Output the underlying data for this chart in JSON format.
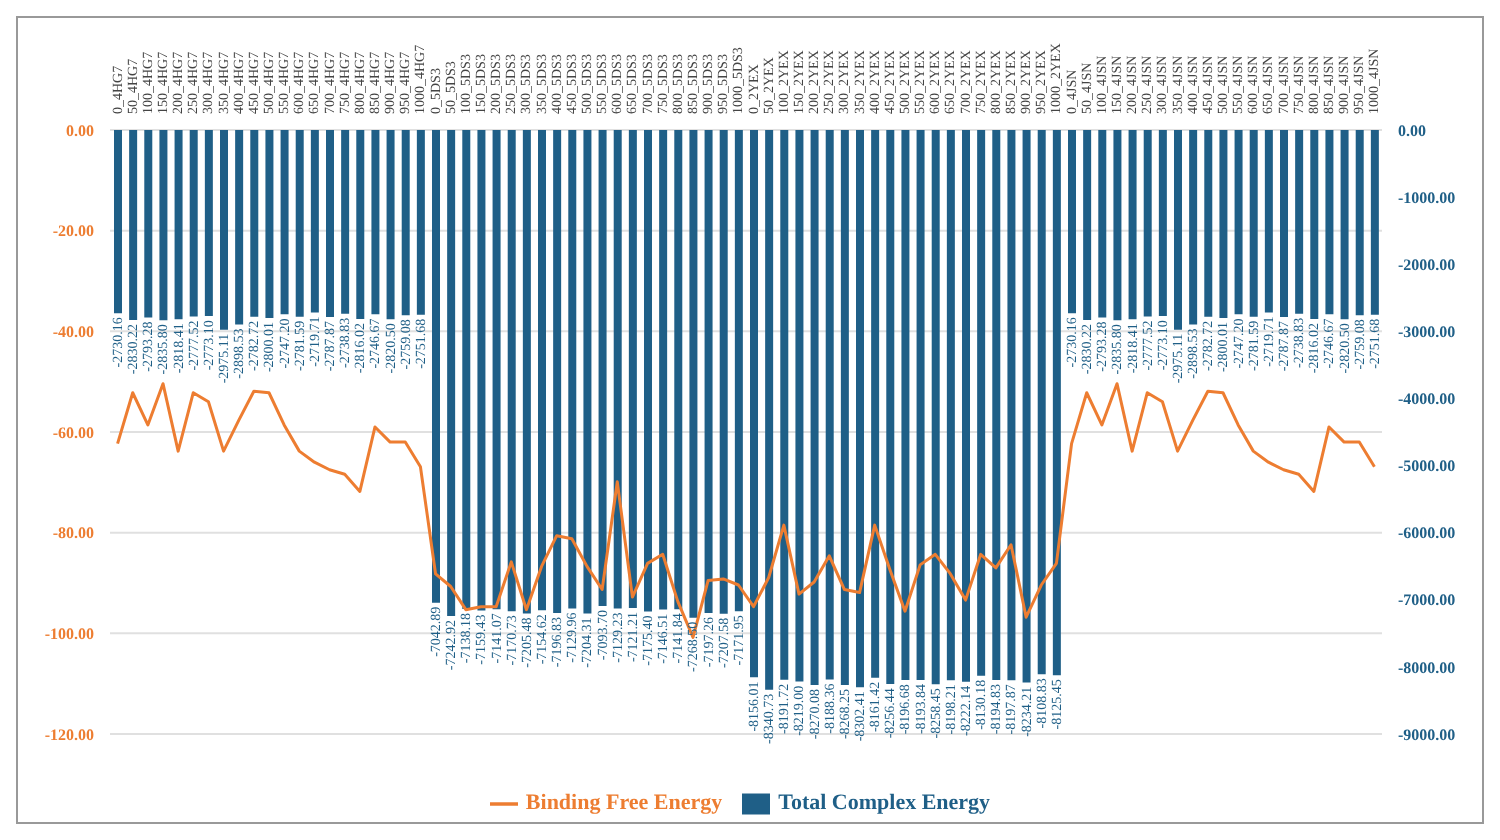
{
  "chart_data": {
    "type": "bar",
    "categories": [
      "0_4HG7",
      "50_4HG7",
      "100_4HG7",
      "150_4HG7",
      "200_4HG7",
      "250_4HG7",
      "300_4HG7",
      "350_4HG7",
      "400_4HG7",
      "450_4HG7",
      "500_4HG7",
      "550_4HG7",
      "600_4HG7",
      "650_4HG7",
      "700_4HG7",
      "750_4HG7",
      "800_4HG7",
      "850_4HG7",
      "900_4HG7",
      "950_4HG7",
      "1000_4HG7",
      "0_5DS3",
      "50_5DS3",
      "100_5DS3",
      "150_5DS3",
      "200_5DS3",
      "250_5DS3",
      "300_5DS3",
      "350_5DS3",
      "400_5DS3",
      "450_5DS3",
      "500_5DS3",
      "550_5DS3",
      "600_5DS3",
      "650_5DS3",
      "700_5DS3",
      "750_5DS3",
      "800_5DS3",
      "850_5DS3",
      "900_5DS3",
      "950_5DS3",
      "1000_5DS3",
      "0_2YEX",
      "50_2YEX",
      "100_2YEX",
      "150_2YEX",
      "200_2YEX",
      "250_2YEX",
      "300_2YEX",
      "350_2YEX",
      "400_2YEX",
      "450_2YEX",
      "500_2YEX",
      "550_2YEX",
      "600_2YEX",
      "650_2YEX",
      "700_2YEX",
      "750_2YEX",
      "800_2YEX",
      "850_2YEX",
      "900_2YEX",
      "950_2YEX",
      "1000_2YEX",
      "0_4JSN",
      "50_4JSN",
      "100_4JSN",
      "150_4JSN",
      "200_4JSN",
      "250_4JSN",
      "300_4JSN",
      "350_4JSN",
      "400_4JSN",
      "450_4JSN",
      "500_4JSN",
      "550_4JSN",
      "600_4JSN",
      "650_4JSN",
      "700_4JSN",
      "750_4JSN",
      "800_4JSN",
      "850_4JSN",
      "900_4JSN",
      "950_4JSN",
      "1000_4JSN"
    ],
    "series": [
      {
        "name": "Total Complex Energy",
        "axis": "y2",
        "color": "#1f5f87",
        "values": [
          -2730.16,
          -2830.22,
          -2793.28,
          -2835.8,
          -2818.41,
          -2777.52,
          -2773.1,
          -2975.11,
          -2898.53,
          -2782.72,
          -2800.01,
          -2747.2,
          -2781.59,
          -2719.71,
          -2787.87,
          -2738.83,
          -2816.02,
          -2746.67,
          -2820.5,
          -2759.08,
          -2751.68,
          -7042.89,
          -7242.92,
          -7138.18,
          -7159.43,
          -7141.07,
          -7170.73,
          -7205.48,
          -7154.62,
          -7196.83,
          -7129.96,
          -7204.31,
          -7093.7,
          -7129.23,
          -7121.21,
          -7175.4,
          -7146.51,
          -7141.84,
          -7268.5,
          -7197.26,
          -7207.58,
          -7171.95,
          -8156.01,
          -8340.73,
          -8191.72,
          -8219.0,
          -8270.08,
          -8188.36,
          -8268.25,
          -8302.41,
          -8161.42,
          -8256.44,
          -8196.68,
          -8193.84,
          -8258.45,
          -8198.21,
          -8222.14,
          -8130.18,
          -8194.83,
          -8197.87,
          -8234.21,
          -8108.83,
          -8125.45,
          -2730.16,
          -2830.22,
          -2793.28,
          -2835.8,
          -2818.41,
          -2777.52,
          -2773.1,
          -2975.11,
          -2898.53,
          -2782.72,
          -2800.01,
          -2747.2,
          -2781.59,
          -2719.71,
          -2787.87,
          -2738.83,
          -2816.02,
          -2746.67,
          -2820.5,
          -2759.08,
          -2751.68
        ],
        "value_labels": [
          "-2730.16",
          "-2830.22",
          "-2793.28",
          "-2835.80",
          "-2818.41",
          "-2777.52",
          "-2773.10",
          "-2975.11",
          "-2898.53",
          "-2782.72",
          "-2800.01",
          "-2747.20",
          "-2781.59",
          "-2719.71",
          "-2787.87",
          "-2738.83",
          "-2816.02",
          "-2746.67",
          "-2820.50",
          "-2759.08",
          "-2751.68",
          "-7042.89",
          "-7242.92",
          "-7138.18",
          "-7159.43",
          "-7141.07",
          "-7170.73",
          "-7205.48",
          "-7154.62",
          "-7196.83",
          "-7129.96",
          "-7204.31",
          "-7093.70",
          "-7129.23",
          "-7121.21",
          "-7175.40",
          "-7146.51",
          "-7141.84",
          "-7268.50",
          "-7197.26",
          "-7207.58",
          "-7171.95",
          "-8156.01",
          "-8340.73",
          "-8191.72",
          "-8219.00",
          "-8270.08",
          "-8188.36",
          "-8268.25",
          "-8302.41",
          "-8161.42",
          "-8256.44",
          "-8196.68",
          "-8193.84",
          "-8258.45",
          "-8198.21",
          "-8222.14",
          "-8130.18",
          "-8194.83",
          "-8197.87",
          "-8234.21",
          "-8108.83",
          "-8125.45",
          "-2730.16",
          "-2830.22",
          "-2793.28",
          "-2835.80",
          "-2818.41",
          "-2777.52",
          "-2773.10",
          "-2975.11",
          "-2898.53",
          "-2782.72",
          "-2800.01",
          "-2747.20",
          "-2781.59",
          "-2719.71",
          "-2787.87",
          "-2738.83",
          "-2816.02",
          "-2746.67",
          "-2820.50",
          "-2759.08",
          "-2751.68"
        ]
      },
      {
        "name": "Binding Free Energy",
        "type": "line",
        "axis": "y",
        "color": "#ed7d31",
        "values": [
          -62.3,
          -52.2,
          -58.6,
          -50.4,
          -63.8,
          -52.2,
          -54,
          -63.8,
          -57.7,
          -51.9,
          -52.2,
          -58.6,
          -63.8,
          -66,
          -67.5,
          -68.4,
          -71.8,
          -59,
          -62,
          -62,
          -66.9,
          -88.2,
          -90.7,
          -95.3,
          -94.7,
          -94.7,
          -85.8,
          -95.3,
          -86.7,
          -80.6,
          -81.2,
          -86.7,
          -91.3,
          -69.9,
          -92.8,
          -86.1,
          -84.3,
          -93.7,
          -100.8,
          -89.5,
          -89.2,
          -90.4,
          -94.7,
          -88.9,
          -78.5,
          -92.2,
          -89.8,
          -84.6,
          -91.3,
          -91.9,
          -78.5,
          -87.3,
          -95.6,
          -86.4,
          -84.3,
          -88.2,
          -93.4,
          -84.3,
          -87,
          -82.4,
          -96.8,
          -90.4,
          -86.1,
          -62.3,
          -52.2,
          -58.6,
          -50.4,
          -63.8,
          -52.2,
          -54,
          -63.8,
          -57.7,
          -51.9,
          -52.2,
          -58.6,
          -63.8,
          -66,
          -67.5,
          -68.4,
          -71.8,
          -59,
          -62,
          -62,
          -66.9
        ]
      }
    ],
    "ylim": [
      -120,
      0
    ],
    "yticks": [
      {
        "value": -120,
        "label": "-120.00"
      },
      {
        "value": -100,
        "label": "-100.00"
      },
      {
        "value": -80,
        "label": "-80.00"
      },
      {
        "value": -60,
        "label": "-60.00"
      },
      {
        "value": -40,
        "label": "-40.00"
      },
      {
        "value": -20,
        "label": "-20.00"
      },
      {
        "value": 0,
        "label": "0.00"
      }
    ],
    "y2lim": [
      -9000,
      0
    ],
    "y2ticks": [
      {
        "value": -9000,
        "label": "-9000.00"
      },
      {
        "value": -8000,
        "label": "-8000.00"
      },
      {
        "value": -7000,
        "label": "-7000.00"
      },
      {
        "value": -6000,
        "label": "-6000.00"
      },
      {
        "value": -5000,
        "label": "-5000.00"
      },
      {
        "value": -4000,
        "label": "-4000.00"
      },
      {
        "value": -3000,
        "label": "-3000.00"
      },
      {
        "value": -2000,
        "label": "-2000.00"
      },
      {
        "value": -1000,
        "label": "-1000.00"
      },
      {
        "value": 0,
        "label": "0.00"
      }
    ],
    "grid": "y",
    "legend": "bottom",
    "marker": "none",
    "line_style": "solid"
  }
}
